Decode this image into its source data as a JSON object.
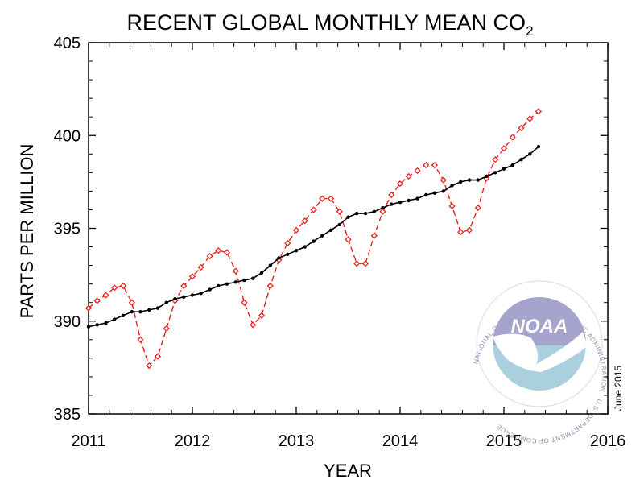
{
  "chart_data": {
    "type": "line",
    "title": "RECENT GLOBAL MONTHLY MEAN CO",
    "title_subscript": "2",
    "xlabel": "YEAR",
    "ylabel": "PARTS PER MILLION",
    "xlim": [
      2011,
      2016
    ],
    "ylim": [
      385,
      405
    ],
    "x_ticks": [
      "2011",
      "2012",
      "2013",
      "2014",
      "2015",
      "2016"
    ],
    "y_ticks": [
      "385",
      "390",
      "395",
      "400",
      "405"
    ],
    "grid": false,
    "note": "June 2015",
    "logo_text": "NOAA",
    "logo_ring_text": "NATIONAL OCEANIC AND ATMOSPHERIC ADMINISTRATION · U.S. DEPARTMENT OF COMMERCE",
    "x": [
      2011.0,
      2011.083,
      2011.167,
      2011.25,
      2011.333,
      2011.417,
      2011.5,
      2011.583,
      2011.667,
      2011.75,
      2011.833,
      2011.917,
      2012.0,
      2012.083,
      2012.167,
      2012.25,
      2012.333,
      2012.417,
      2012.5,
      2012.583,
      2012.667,
      2012.75,
      2012.833,
      2012.917,
      2013.0,
      2013.083,
      2013.167,
      2013.25,
      2013.333,
      2013.417,
      2013.5,
      2013.583,
      2013.667,
      2013.75,
      2013.833,
      2013.917,
      2014.0,
      2014.083,
      2014.167,
      2014.25,
      2014.333,
      2014.417,
      2014.5,
      2014.583,
      2014.667,
      2014.75,
      2014.833,
      2014.917,
      2015.0,
      2015.083,
      2015.167,
      2015.25,
      2015.333
    ],
    "series": [
      {
        "color": "#e8231f",
        "style": "dashed",
        "marker": "diamond",
        "values": [
          390.7,
          391.1,
          391.4,
          391.8,
          391.9,
          391.0,
          389.0,
          387.6,
          388.1,
          389.6,
          391.1,
          391.9,
          392.4,
          392.9,
          393.5,
          393.8,
          393.7,
          392.7,
          391.0,
          389.8,
          390.3,
          391.9,
          393.3,
          394.2,
          394.9,
          395.4,
          396.0,
          396.6,
          396.6,
          395.9,
          394.4,
          393.1,
          393.1,
          394.6,
          395.9,
          396.8,
          397.4,
          397.8,
          398.1,
          398.4,
          398.4,
          397.6,
          396.2,
          394.8,
          394.9,
          396.1,
          397.7,
          398.7,
          399.3,
          399.9,
          400.4,
          400.9,
          401.3
        ]
      },
      {
        "color": "#000000",
        "style": "solid",
        "marker": "dot",
        "values": [
          389.7,
          389.8,
          389.9,
          390.1,
          390.3,
          390.5,
          390.5,
          390.6,
          390.7,
          391.0,
          391.2,
          391.3,
          391.4,
          391.5,
          391.7,
          391.9,
          392.0,
          392.1,
          392.2,
          392.3,
          392.6,
          393.0,
          393.4,
          393.6,
          393.8,
          394.0,
          394.3,
          394.6,
          394.9,
          395.2,
          395.6,
          395.8,
          395.8,
          395.9,
          396.1,
          396.3,
          396.4,
          396.5,
          396.6,
          396.8,
          396.9,
          397.0,
          397.3,
          397.5,
          397.6,
          397.6,
          397.8,
          398.0,
          398.2,
          398.4,
          398.7,
          399.0,
          399.4
        ]
      }
    ]
  }
}
